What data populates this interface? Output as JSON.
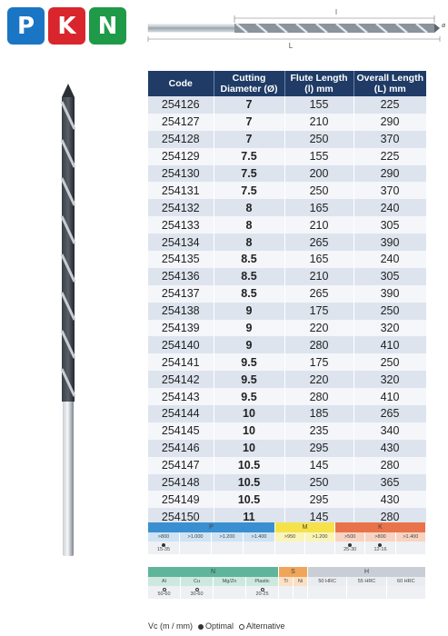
{
  "logo": {
    "letters": [
      "P",
      "K",
      "N"
    ],
    "colors": [
      "#1a75c4",
      "#d8262c",
      "#1f9a48"
    ]
  },
  "diagram": {
    "flute_label": "l",
    "overall_label": "L",
    "diameter_label": "ø"
  },
  "table": {
    "headers": [
      "Code",
      "Cutting Diameter (Ø)",
      "Flute Length (l) mm",
      "Overall Length (L) mm"
    ],
    "rows": [
      [
        "254126",
        "7",
        "155",
        "225"
      ],
      [
        "254127",
        "7",
        "210",
        "290"
      ],
      [
        "254128",
        "7",
        "250",
        "370"
      ],
      [
        "254129",
        "7.5",
        "155",
        "225"
      ],
      [
        "254130",
        "7.5",
        "200",
        "290"
      ],
      [
        "254131",
        "7.5",
        "250",
        "370"
      ],
      [
        "254132",
        "8",
        "165",
        "240"
      ],
      [
        "254133",
        "8",
        "210",
        "305"
      ],
      [
        "254134",
        "8",
        "265",
        "390"
      ],
      [
        "254135",
        "8.5",
        "165",
        "240"
      ],
      [
        "254136",
        "8.5",
        "210",
        "305"
      ],
      [
        "254137",
        "8.5",
        "265",
        "390"
      ],
      [
        "254138",
        "9",
        "175",
        "250"
      ],
      [
        "254139",
        "9",
        "220",
        "320"
      ],
      [
        "254140",
        "9",
        "280",
        "410"
      ],
      [
        "254141",
        "9.5",
        "175",
        "250"
      ],
      [
        "254142",
        "9.5",
        "220",
        "320"
      ],
      [
        "254143",
        "9.5",
        "280",
        "410"
      ],
      [
        "254144",
        "10",
        "185",
        "265"
      ],
      [
        "254145",
        "10",
        "235",
        "340"
      ],
      [
        "254146",
        "10",
        "295",
        "430"
      ],
      [
        "254147",
        "10.5",
        "145",
        "280"
      ],
      [
        "254148",
        "10.5",
        "250",
        "365"
      ],
      [
        "254149",
        "10.5",
        "295",
        "430"
      ],
      [
        "254150",
        "11",
        "145",
        "280"
      ]
    ]
  },
  "materials_top": {
    "groups": [
      {
        "label": "P",
        "color": "#3a8fd0",
        "sub_color": "#cfe3f4",
        "subs": [
          ">800",
          ">1.000",
          ">1.200",
          ">1.400"
        ],
        "values": [
          "15-35",
          "",
          "",
          ""
        ],
        "dots": [
          "filled",
          "",
          "",
          ""
        ]
      },
      {
        "label": "M",
        "color": "#f5e24a",
        "sub_color": "#fbf4b8",
        "subs": [
          ">950",
          ">1.200"
        ],
        "values": [
          "",
          ""
        ],
        "dots": [
          "",
          ""
        ]
      },
      {
        "label": "K",
        "color": "#e8734a",
        "sub_color": "#f8d3c2",
        "subs": [
          ">500",
          ">800",
          ">1.400"
        ],
        "values": [
          "25-30",
          "12-16",
          ""
        ],
        "dots": [
          "filled",
          "filled",
          ""
        ]
      }
    ]
  },
  "materials_bottom": {
    "groups": [
      {
        "label": "N",
        "color": "#5fb59a",
        "sub_color": "#cde9df",
        "subs": [
          "Al",
          "Cu",
          "Mg/Zn",
          "Plastic"
        ],
        "values": [
          "50-60",
          "30-60",
          "",
          "20-25"
        ],
        "dots": [
          "hollow",
          "hollow",
          "",
          "hollow"
        ]
      },
      {
        "label": "S",
        "color": "#f0a65a",
        "sub_color": "#fbe0c4",
        "subs": [
          "Ti",
          "Ni"
        ],
        "values": [
          "",
          ""
        ],
        "dots": [
          "",
          ""
        ]
      },
      {
        "label": "H",
        "color": "#c9ced6",
        "sub_color": "#e9ecf0",
        "subs": [
          "50 HRC",
          "55 HRC",
          "60 HRC"
        ],
        "values": [
          "",
          "",
          ""
        ],
        "dots": [
          "",
          "",
          ""
        ]
      }
    ]
  },
  "legend": {
    "vc": "Vc (m / mm)",
    "optimal": "Optimal",
    "alternative": "Alternative"
  }
}
